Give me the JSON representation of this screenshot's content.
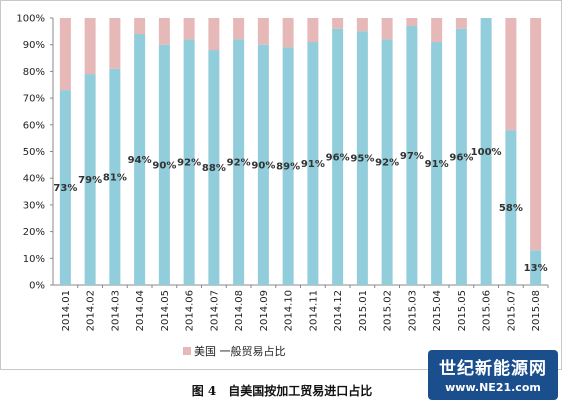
{
  "chart_data": {
    "type": "bar",
    "stacked": true,
    "categories": [
      "2014.01",
      "2014.02",
      "2014.03",
      "2014.04",
      "2014.05",
      "2014.06",
      "2014.07",
      "2014.08",
      "2014.09",
      "2014.10",
      "2014.11",
      "2014.12",
      "2015.01",
      "2015.02",
      "2015.03",
      "2015.04",
      "2015.05",
      "2015.06",
      "2015.07",
      "2015.08"
    ],
    "series": [
      {
        "name": "",
        "color": "#92cddc",
        "values": [
          73,
          79,
          81,
          94,
          90,
          92,
          88,
          92,
          90,
          89,
          91,
          96,
          95,
          92,
          97,
          91,
          96,
          100,
          58,
          13
        ],
        "labels": [
          "73%",
          "79%",
          "81%",
          "94%",
          "90%",
          "92%",
          "88%",
          "92%",
          "90%",
          "89%",
          "91%",
          "96%",
          "95%",
          "92%",
          "97%",
          "91%",
          "96%",
          "100%",
          "58%",
          "13%"
        ]
      },
      {
        "name": "美国 一般贸易占比",
        "color": "#e6b9b8",
        "values": [
          27,
          21,
          19,
          6,
          10,
          8,
          12,
          8,
          10,
          11,
          9,
          4,
          5,
          8,
          3,
          9,
          4,
          0,
          42,
          87
        ]
      }
    ],
    "ylim": [
      0,
      100
    ],
    "yticks": [
      "0%",
      "10%",
      "20%",
      "30%",
      "40%",
      "50%",
      "60%",
      "70%",
      "80%",
      "90%",
      "100%"
    ],
    "grid": false,
    "legend": "bottom-center"
  },
  "caption": "图 4　自美国按加工贸易进口占比",
  "watermark": {
    "title": "世纪新能源网",
    "url": "www.NE21.com"
  }
}
